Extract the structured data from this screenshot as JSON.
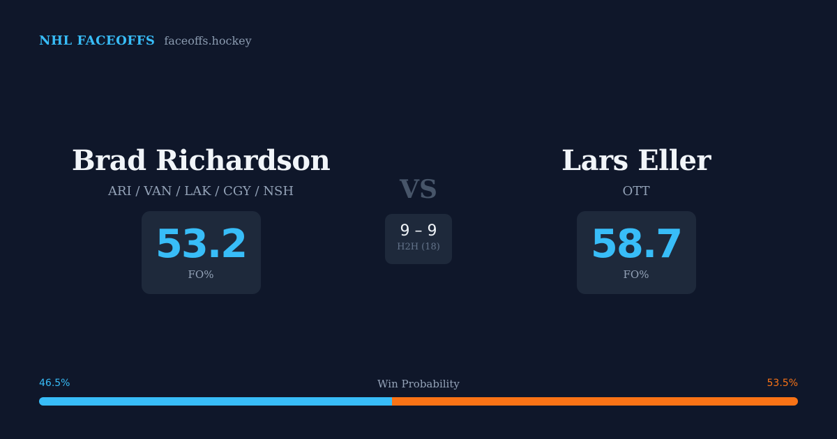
{
  "brand": {
    "title": "NHL FACEOFFS",
    "site": "faceoffs.hockey"
  },
  "players": [
    {
      "name": "Brad Richardson",
      "teams": "ARI / VAN / LAK / CGY / NSH",
      "fo_value": "53.2",
      "fo_label": "FO%"
    },
    {
      "name": "Lars Eller",
      "teams": "OTT",
      "fo_value": "58.7",
      "fo_label": "FO%"
    }
  ],
  "vs": "VS",
  "h2h": {
    "score": "9 – 9",
    "label": "H2H (18)"
  },
  "win_probability": {
    "label": "Win Probability",
    "left_text": "46.5%",
    "right_text": "53.5%",
    "left_fraction": 0.465,
    "left_color": "#38bdf8",
    "right_color": "#f97316"
  },
  "colors": {
    "background": "#0f172a",
    "card": "#1e293b",
    "accent": "#38bdf8",
    "opponent": "#f97316"
  }
}
